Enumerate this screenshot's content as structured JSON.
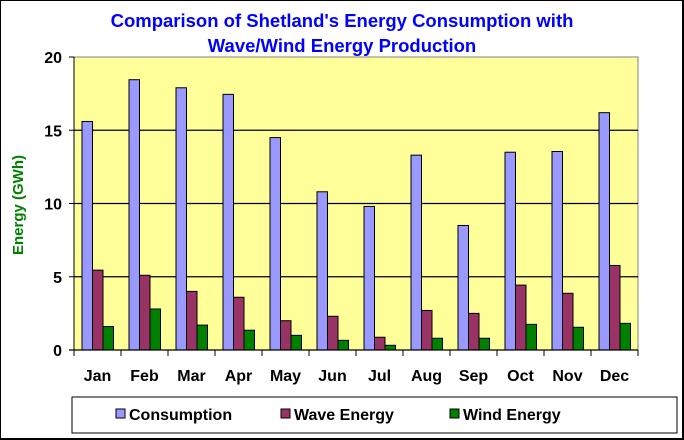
{
  "chart_data": {
    "type": "bar",
    "title": [
      "Comparison of Shetland's Energy Consumption with",
      "Wave/Wind Energy Production"
    ],
    "xlabel": "",
    "ylabel": "Energy (GWh)",
    "ylim": [
      0,
      20
    ],
    "yticks": [
      0,
      5,
      10,
      15,
      20
    ],
    "grid": true,
    "legend_position": "bottom",
    "categories": [
      "Jan",
      "Feb",
      "Mar",
      "Apr",
      "May",
      "Jun",
      "Jul",
      "Aug",
      "Sep",
      "Oct",
      "Nov",
      "Dec"
    ],
    "series": [
      {
        "name": "Consumption",
        "color": "#9999ff",
        "values": [
          15.6,
          18.45,
          17.9,
          17.45,
          14.5,
          10.8,
          9.8,
          13.3,
          8.5,
          13.5,
          13.55,
          16.2
        ]
      },
      {
        "name": "Wave Energy",
        "color": "#993366",
        "values": [
          5.45,
          5.1,
          4.0,
          3.6,
          2.0,
          2.3,
          0.87,
          2.7,
          2.5,
          4.43,
          3.87,
          5.77
        ]
      },
      {
        "name": "Wind Energy",
        "color": "#008000",
        "values": [
          1.6,
          2.8,
          1.7,
          1.35,
          1.0,
          0.66,
          0.32,
          0.8,
          0.8,
          1.75,
          1.55,
          1.82
        ]
      }
    ],
    "colors": {
      "plot_background": "#ffff99",
      "title": "#0000ff",
      "ylabel": "#008000"
    }
  }
}
